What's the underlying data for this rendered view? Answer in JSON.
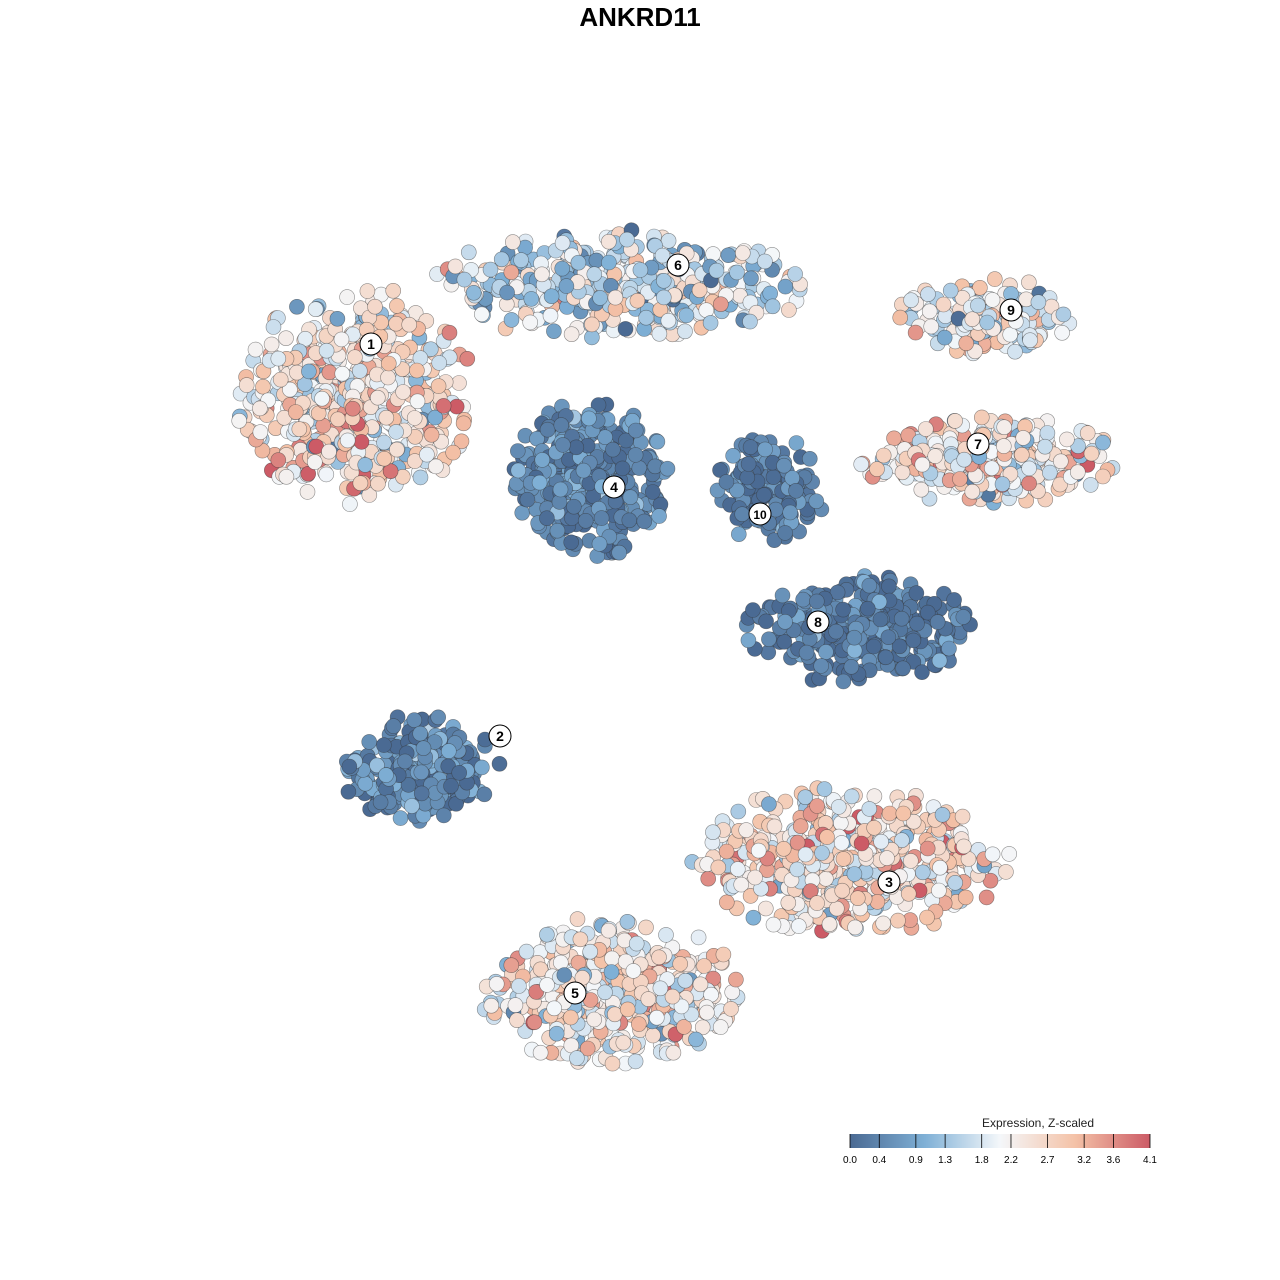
{
  "chart_data": {
    "type": "scatter",
    "title": "ANKRD11",
    "xlabel": "",
    "ylabel": "",
    "grid": false,
    "legend": {
      "title": "Expression, Z-scaled",
      "placement": "bottom-right",
      "ticks": [
        "0.0",
        "0.4",
        "0.9",
        "1.3",
        "1.8",
        "2.2",
        "2.7",
        "3.2",
        "3.6",
        "4.1"
      ],
      "range": [
        0.0,
        4.1
      ]
    },
    "colors": {
      "low": "#4a6a93",
      "mid_low": "#7fb0d6",
      "mid": "#f4f7fa",
      "mid_high": "#f4c2a7",
      "high": "#cc5b66"
    },
    "clusters": [
      {
        "label": "1",
        "mean_expression": 2.4
      },
      {
        "label": "2",
        "mean_expression": 0.5
      },
      {
        "label": "3",
        "mean_expression": 2.5
      },
      {
        "label": "4",
        "mean_expression": 0.4
      },
      {
        "label": "5",
        "mean_expression": 2.3
      },
      {
        "label": "6",
        "mean_expression": 1.7
      },
      {
        "label": "7",
        "mean_expression": 2.4
      },
      {
        "label": "8",
        "mean_expression": 0.3
      },
      {
        "label": "9",
        "mean_expression": 2.1
      },
      {
        "label": "10",
        "mean_expression": 0.3
      }
    ]
  }
}
